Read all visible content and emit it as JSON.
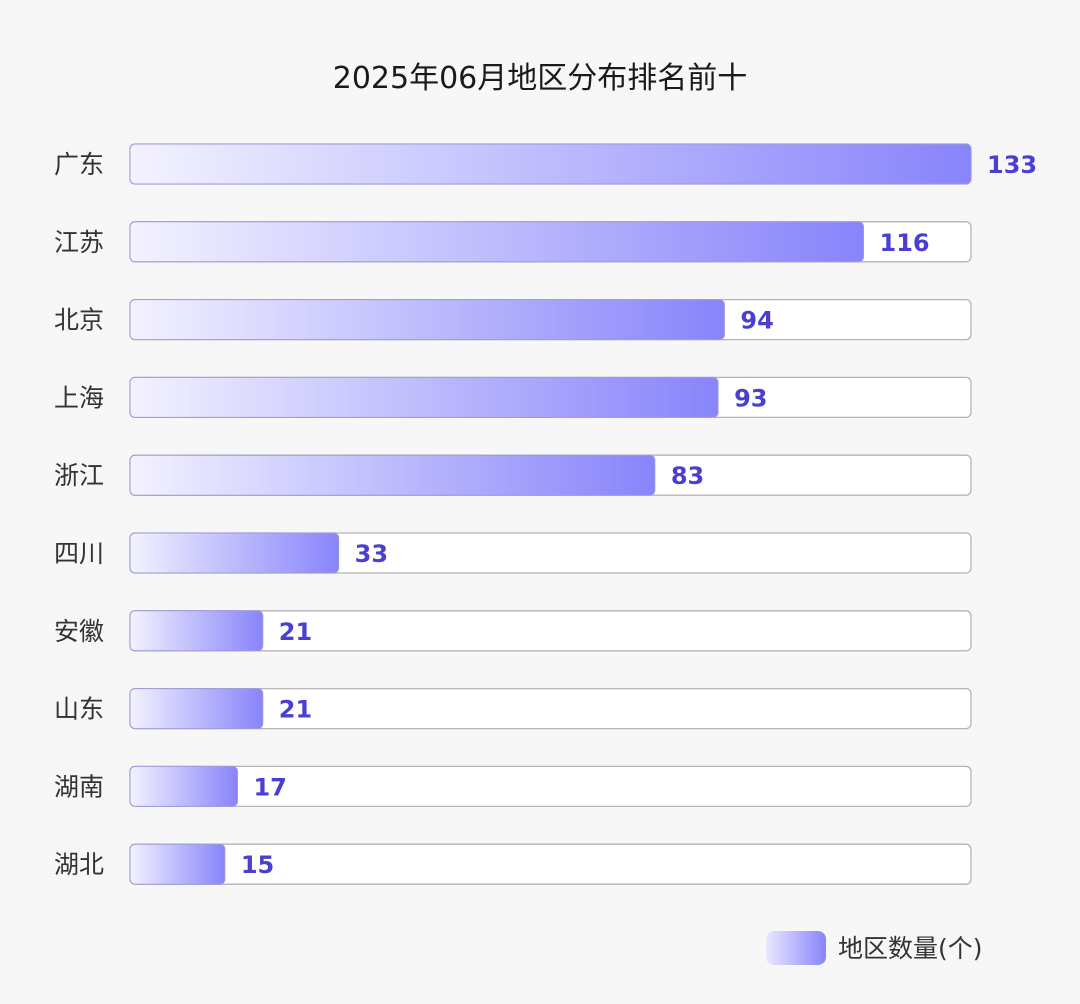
{
  "chart_data": {
    "type": "bar",
    "orientation": "horizontal",
    "title": "2025年06月地区分布排名前十",
    "categories": [
      "广东",
      "江苏",
      "北京",
      "上海",
      "浙江",
      "四川",
      "安徽",
      "山东",
      "湖南",
      "湖北"
    ],
    "series": [
      {
        "name": "地区数量(个)",
        "values": [
          133,
          116,
          94,
          93,
          83,
          33,
          21,
          21,
          17,
          15
        ]
      }
    ],
    "xlim": [
      0,
      133
    ],
    "grid": false,
    "legend_position": "bottom-right",
    "colors": {
      "bar_start": "#f3f2ff",
      "bar_end": "#8884fb",
      "value_label": "#4a3fd1",
      "track_border": "#b5b5b9"
    }
  }
}
